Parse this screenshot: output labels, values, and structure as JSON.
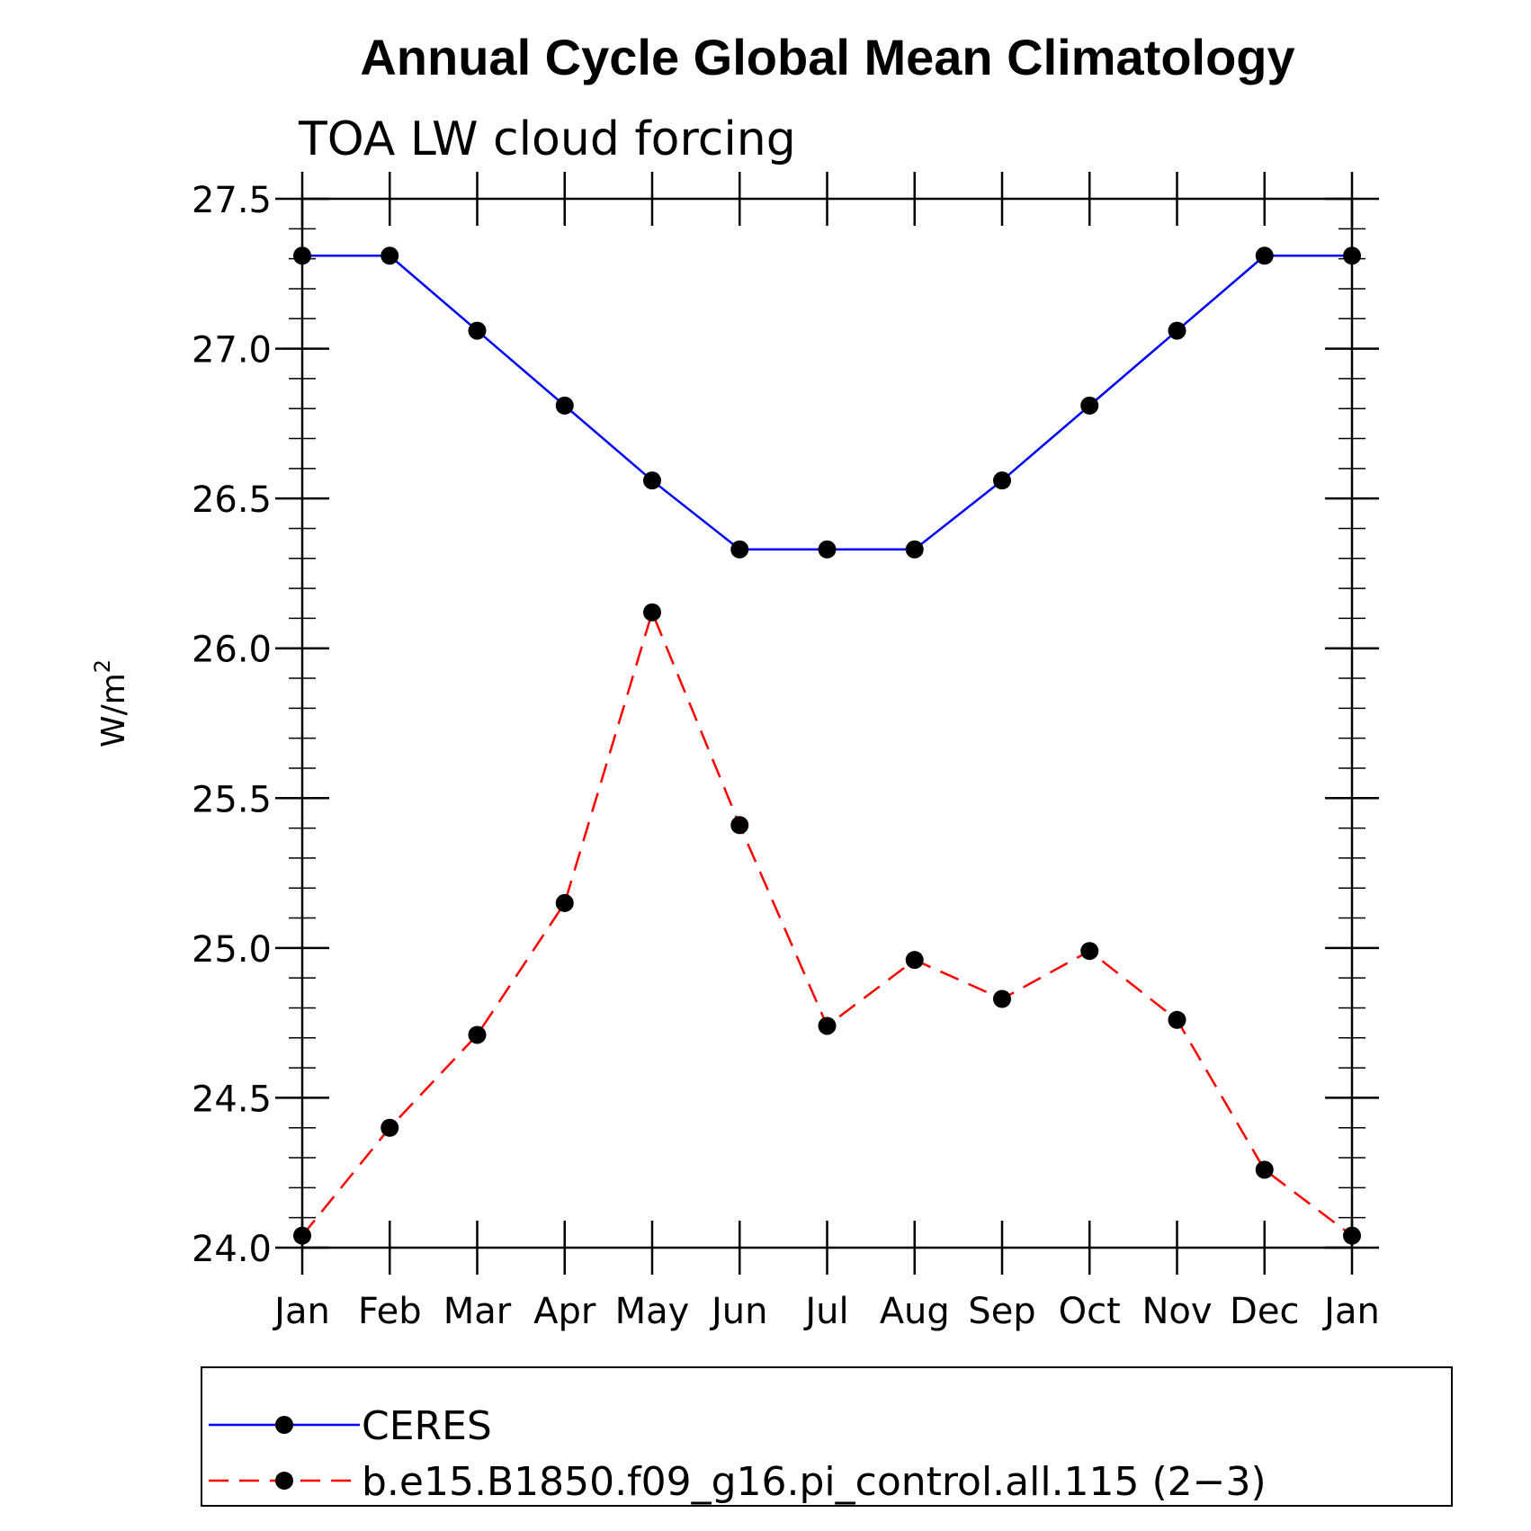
{
  "chart_data": {
    "type": "line",
    "title": "Annual Cycle Global Mean Climatology",
    "subtitle": "TOA LW cloud forcing",
    "ylabel": "W/m",
    "ylabel_superscript": "2",
    "xlabel": "",
    "categories": [
      "Jan",
      "Feb",
      "Mar",
      "Apr",
      "May",
      "Jun",
      "Jul",
      "Aug",
      "Sep",
      "Oct",
      "Nov",
      "Dec",
      "Jan"
    ],
    "ylim": [
      24.0,
      27.5
    ],
    "yticks": [
      24.0,
      24.5,
      25.0,
      25.5,
      26.0,
      26.5,
      27.0,
      27.5
    ],
    "ytick_labels": [
      "24.0",
      "24.5",
      "25.0",
      "25.5",
      "26.0",
      "26.5",
      "27.0",
      "27.5"
    ],
    "grid": false,
    "legend_position": "bottom",
    "series": [
      {
        "name": "CERES",
        "color": "#0000ff",
        "dash": "solid",
        "marker_color": "#000000",
        "values": [
          27.31,
          27.31,
          27.06,
          26.81,
          26.56,
          26.33,
          26.33,
          26.33,
          26.56,
          26.81,
          27.06,
          27.31,
          27.31
        ]
      },
      {
        "name": "b.e15.B1850.f09_g16.pi_control.all.115 (2−3)",
        "color": "#ff0000",
        "dash": "dashed",
        "marker_color": "#000000",
        "values": [
          24.04,
          24.4,
          24.71,
          25.15,
          26.12,
          25.41,
          24.74,
          24.96,
          24.83,
          24.99,
          24.76,
          24.26,
          24.04
        ]
      }
    ]
  }
}
